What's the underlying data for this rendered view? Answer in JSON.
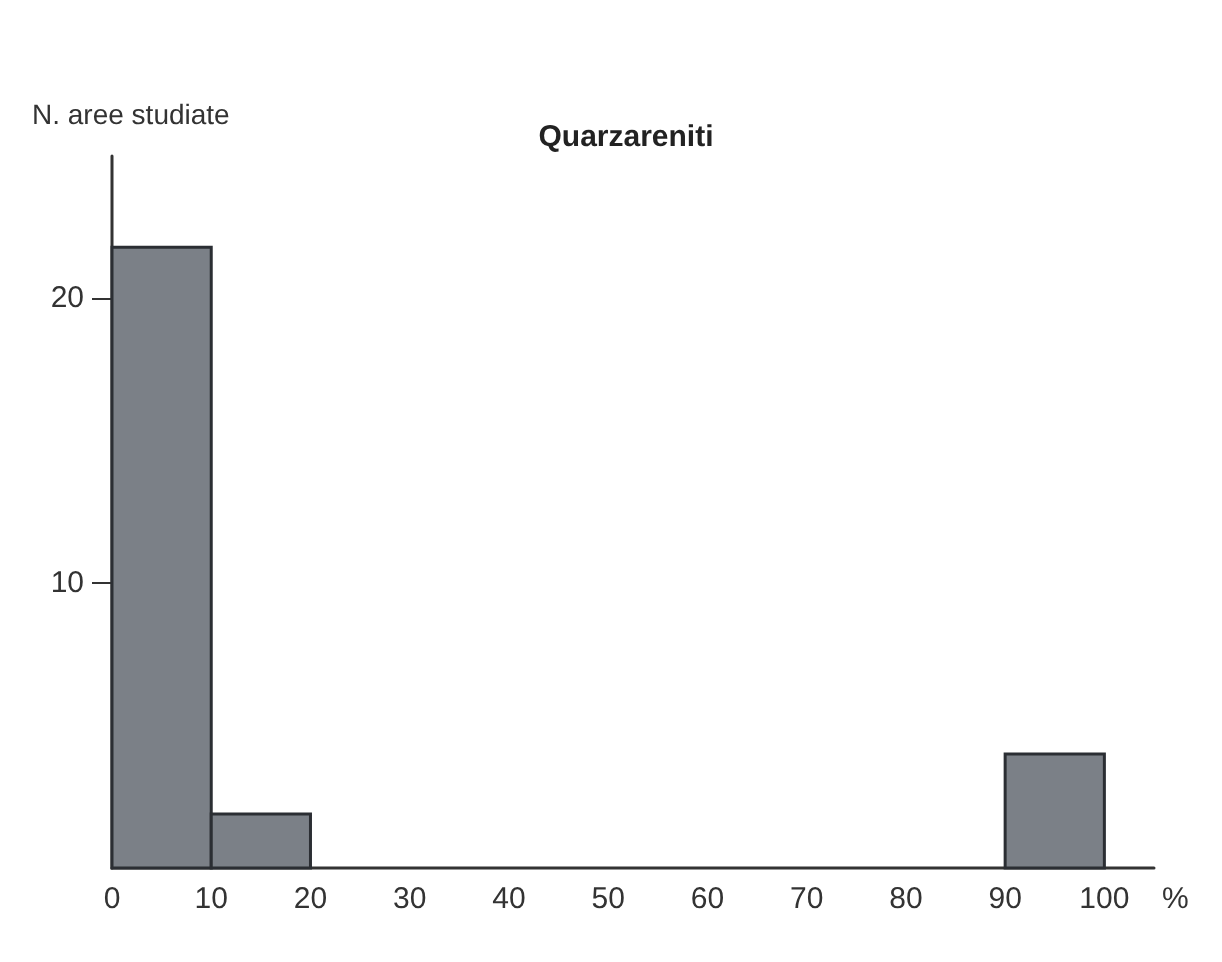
{
  "chart_data": {
    "type": "histogram",
    "title": "Quarzareniti",
    "xlabel": "%",
    "ylabel": "N. aree studiate",
    "bins": [
      0,
      10,
      20,
      30,
      40,
      50,
      60,
      70,
      80,
      90,
      100
    ],
    "values": [
      21.8,
      1.9,
      0,
      0,
      0,
      0,
      0,
      0,
      0,
      4
    ],
    "color": "#7b8087",
    "xlim": [
      0,
      105
    ],
    "xticks": [
      0,
      10,
      20,
      30,
      40,
      50,
      60,
      70,
      80,
      90,
      100
    ],
    "ylim": [
      0,
      25
    ],
    "yticks": [
      10,
      20
    ],
    "grid": false
  }
}
